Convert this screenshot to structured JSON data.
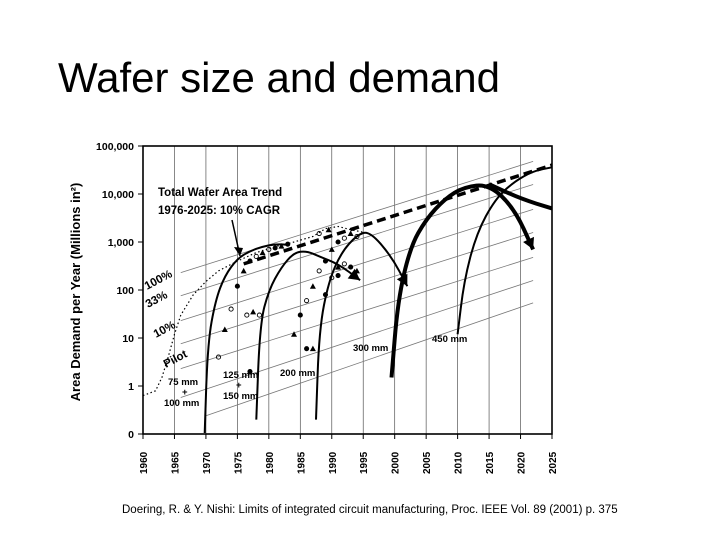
{
  "slide": {
    "title": "Wafer size and demand",
    "citation": "Doering, R. & Y. Nishi: Limits of integrated circuit manufacturing, Proc. IEEE Vol. 89 (2001) p. 375"
  },
  "chart_data": {
    "type": "line",
    "title": "",
    "ylabel": "Area Demand per Year (Millions in²)",
    "xlabel": "",
    "x_ticks": [
      1960,
      1965,
      1970,
      1975,
      1980,
      1985,
      1990,
      1995,
      2000,
      2005,
      2010,
      2015,
      2020,
      2025
    ],
    "x_tick_labels": [
      "1960",
      "1965",
      "1970",
      "1975",
      "1980",
      "1985",
      "1990",
      "1995",
      "2000",
      "2005",
      "2010",
      "2015",
      "2020",
      "2025"
    ],
    "y_ticks": [
      0,
      1,
      10,
      100,
      1000,
      10000,
      100000
    ],
    "y_tick_labels": [
      "0",
      "1",
      "10",
      "100",
      "1,000",
      "10,000",
      "100,000"
    ],
    "xlim": [
      1960,
      2025
    ],
    "y_scale": "log",
    "grid": "vertical",
    "annotations": {
      "trend_title": "Total Wafer Area Trend",
      "trend_sub": "1976-2025:  10% CAGR",
      "pct_100": "100%",
      "pct_33": "33%",
      "pct_10": "10%",
      "pilot": "Pilot",
      "w75_a": "75 mm",
      "w75_plus": "+",
      "w75_b": "100 mm",
      "w125_a": "125 mm",
      "w125_plus": "+",
      "w125_b": "150 mm",
      "w200": "200 mm",
      "w300": "300 mm",
      "w450": "450 mm"
    },
    "trend": {
      "name": "Total Wafer Area Trend",
      "points": [
        [
          1976,
          350
        ],
        [
          2025,
          40000
        ]
      ]
    },
    "guide_lines": [
      {
        "start_year": 1966,
        "start_value": 230
      },
      {
        "start_year": 1966,
        "start_value": 76
      },
      {
        "start_year": 1966,
        "start_value": 23
      },
      {
        "start_year": 1966,
        "start_value": 7.6
      },
      {
        "start_year": 1966,
        "start_value": 2.3
      },
      {
        "start_year": 1966,
        "start_value": 0.76
      },
      {
        "start_year": 1970,
        "start_value": 0.38
      }
    ],
    "total_dotted": [
      [
        1960,
        0.8
      ],
      [
        1962,
        0.9
      ],
      [
        1963,
        1.5
      ],
      [
        1964,
        4
      ],
      [
        1965,
        12
      ],
      [
        1966,
        30
      ],
      [
        1968,
        80
      ],
      [
        1970,
        150
      ],
      [
        1972,
        250
      ],
      [
        1975,
        400
      ],
      [
        1978,
        600
      ],
      [
        1981,
        800
      ],
      [
        1984,
        1000
      ],
      [
        1987,
        1300
      ],
      [
        1989,
        1900
      ],
      [
        1991,
        2100
      ],
      [
        1993,
        1800
      ],
      [
        1995,
        1600
      ]
    ],
    "series": [
      {
        "name": "75 mm + 100 mm",
        "weight": 2,
        "points": [
          [
            1969.8,
            0.02
          ],
          [
            1970.3,
            8
          ],
          [
            1971.5,
            60
          ],
          [
            1973,
            200
          ],
          [
            1975,
            450
          ],
          [
            1977,
            650
          ],
          [
            1979,
            800
          ],
          [
            1981,
            900
          ],
          [
            1983,
            880
          ]
        ]
      },
      {
        "name": "125 mm + 150 mm",
        "weight": 2,
        "points": [
          [
            1978,
            0.3
          ],
          [
            1978.6,
            20
          ],
          [
            1980,
            100
          ],
          [
            1982,
            300
          ],
          [
            1984,
            600
          ],
          [
            1986,
            650
          ],
          [
            1988,
            500
          ],
          [
            1991,
            350
          ],
          [
            1994.5,
            160
          ]
        ],
        "arrow_end": true
      },
      {
        "name": "200 mm",
        "weight": 2,
        "points": [
          [
            1987.5,
            0.3
          ],
          [
            1988,
            15
          ],
          [
            1989.5,
            150
          ],
          [
            1991.5,
            600
          ],
          [
            1994,
            1400
          ],
          [
            1996,
            1700
          ],
          [
            1999.5,
            500
          ],
          [
            2002,
            120
          ]
        ],
        "arrow_end": true
      },
      {
        "name": "300 mm",
        "weight": 4,
        "points": [
          [
            1999.5,
            1.5
          ],
          [
            2000.5,
            60
          ],
          [
            2002.5,
            800
          ],
          [
            2005,
            3000
          ],
          [
            2008,
            8000
          ],
          [
            2011,
            14000
          ],
          [
            2015,
            16000
          ],
          [
            2019,
            5000
          ],
          [
            2022,
            700
          ]
        ],
        "arrow_end": true
      },
      {
        "name": "450 mm",
        "weight": 2,
        "points": [
          [
            2010,
            12
          ],
          [
            2011,
            150
          ],
          [
            2013,
            1500
          ],
          [
            2016,
            8000
          ],
          [
            2019,
            18000
          ],
          [
            2022,
            30000
          ],
          [
            2025,
            36000
          ]
        ]
      },
      {
        "name": "300 mm decline",
        "weight": 4,
        "points": [
          [
            2015,
            16000
          ],
          [
            2020,
            8000
          ],
          [
            2025,
            5000
          ]
        ]
      }
    ],
    "scatter_points": [
      [
        1972,
        4
      ],
      [
        1973,
        15
      ],
      [
        1974,
        40
      ],
      [
        1975,
        120
      ],
      [
        1976,
        250
      ],
      [
        1977,
        400
      ],
      [
        1978,
        500
      ],
      [
        1979,
        600
      ],
      [
        1980,
        700
      ],
      [
        1981,
        750
      ],
      [
        1982,
        820
      ],
      [
        1983,
        900
      ],
      [
        1976.5,
        30
      ],
      [
        1977.5,
        35
      ],
      [
        1978.5,
        30
      ],
      [
        1977,
        2
      ],
      [
        1984,
        12
      ],
      [
        1985,
        30
      ],
      [
        1986,
        60
      ],
      [
        1987,
        120
      ],
      [
        1988,
        250
      ],
      [
        1989,
        400
      ],
      [
        1990,
        700
      ],
      [
        1991,
        1000
      ],
      [
        1992,
        1200
      ],
      [
        1993,
        1500
      ],
      [
        1994,
        1300
      ],
      [
        1986,
        6
      ],
      [
        1987,
        6
      ],
      [
        1989,
        80
      ],
      [
        1990,
        180
      ],
      [
        1991,
        300
      ],
      [
        1992,
        350
      ],
      [
        1993,
        300
      ],
      [
        1994,
        250
      ],
      [
        1991,
        200
      ],
      [
        1988,
        1500
      ],
      [
        1989.5,
        1800
      ]
    ]
  }
}
